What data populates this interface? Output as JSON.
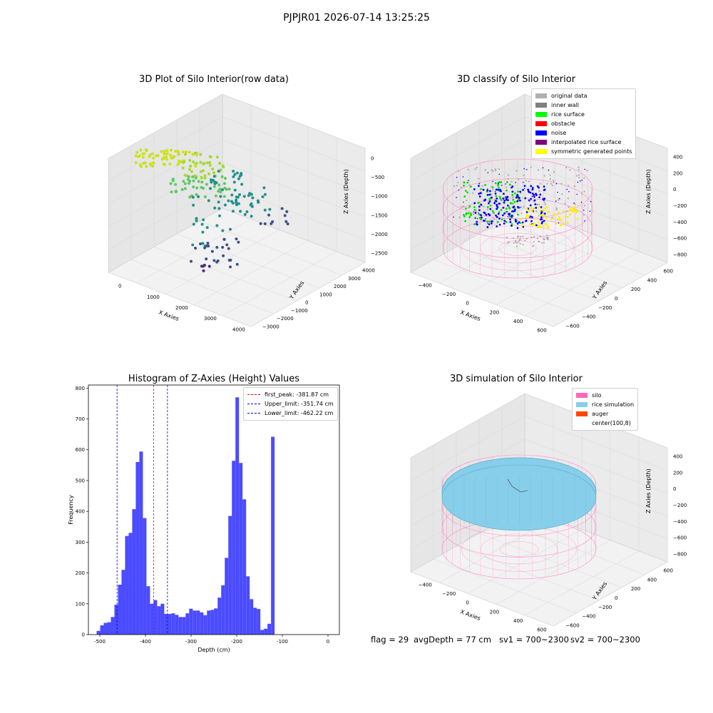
{
  "suptitle": "PJPJR01 2026-07-14 13:25:25",
  "panels": {
    "p1": {
      "title": "3D Plot of Silo Interior(row data)",
      "xlabel": "X Axies",
      "ylabel": "Y Axies",
      "zlabel": "Z Axies (Depth)",
      "xticks": [
        "0",
        "1000",
        "2000",
        "3000",
        "4000"
      ],
      "yticks": [
        "−3000",
        "−2000",
        "−1000",
        "0",
        "1000",
        "2000",
        "3000",
        "4000"
      ],
      "zticks": [
        "0",
        "−500",
        "−1000",
        "−1500",
        "−2000",
        "−2500"
      ]
    },
    "p2": {
      "title": "3D classify of Silo Interior",
      "xlabel": "X Axies",
      "ylabel": "Y Axies",
      "zlabel": "Z Axies (Depth)",
      "xticks": [
        "−400",
        "−200",
        "0",
        "200",
        "400",
        "600"
      ],
      "yticks": [
        "−600",
        "−400",
        "−200",
        "0",
        "200",
        "400",
        "600"
      ],
      "zticks": [
        "400",
        "200",
        "0",
        "−200",
        "−400",
        "−600",
        "−800"
      ],
      "legend": [
        {
          "label": "original data",
          "color": "#b0b0b0"
        },
        {
          "label": "inner wall",
          "color": "#808080"
        },
        {
          "label": "rice surface",
          "color": "#00ff00"
        },
        {
          "label": "obstacle",
          "color": "#ff0000"
        },
        {
          "label": "noise",
          "color": "#0000ff"
        },
        {
          "label": "interpolated rice surface",
          "color": "#800080"
        },
        {
          "label": "symmetric generated points",
          "color": "#ffff00"
        }
      ]
    },
    "p4": {
      "title": "3D simulation of Silo Interior",
      "xlabel": "X Axies",
      "ylabel": "Y Axies",
      "zlabel": "Z Axies (Depth)",
      "xticks": [
        "−400",
        "−200",
        "0",
        "200",
        "400",
        "600"
      ],
      "yticks": [
        "−600",
        "−400",
        "−200",
        "0",
        "200",
        "400",
        "600"
      ],
      "zticks": [
        "400",
        "200",
        "0",
        "−200",
        "−400",
        "−600",
        "−800"
      ],
      "legend": [
        {
          "label": "silo",
          "color": "#ff69b4"
        },
        {
          "label": "rice simulation",
          "color": "#87ceeb"
        },
        {
          "label": "auger",
          "color": "#ff4500"
        },
        {
          "label": "center(100,8)",
          "color": "#ffffff"
        }
      ]
    }
  },
  "chart_data": {
    "type": "bar",
    "title": "Histogram of Z-Axies (Height) Values",
    "xlabel": "Depth (cm)",
    "ylabel": "Frequency",
    "xlim": [
      -525,
      25
    ],
    "ylim": [
      0,
      810
    ],
    "xticks": [
      -500,
      -400,
      -300,
      -200,
      -100,
      0
    ],
    "yticks": [
      0,
      100,
      200,
      300,
      400,
      500,
      600,
      700,
      800
    ],
    "bin_start": -507,
    "bin_width": 7.8,
    "values": [
      12,
      30,
      38,
      40,
      57,
      97,
      162,
      210,
      320,
      330,
      407,
      560,
      594,
      378,
      157,
      100,
      112,
      92,
      100,
      67,
      67,
      69,
      64,
      57,
      57,
      69,
      84,
      78,
      78,
      72,
      63,
      78,
      80,
      85,
      120,
      160,
      249,
      385,
      564,
      770,
      557,
      439,
      189,
      115,
      87,
      83,
      15,
      19,
      35,
      642
    ],
    "lines": [
      {
        "label": "first_peak: -381.87 cm",
        "x": -381.87,
        "color": "#ff0000"
      },
      {
        "label": "Upper_limit: -351.74 cm",
        "x": -351.74,
        "color": "#0000cc"
      },
      {
        "label": "Lower_limit: -462.22 cm",
        "x": -462.22,
        "color": "#0000cc"
      }
    ],
    "bar_color": "#4b4bff"
  },
  "footer": {
    "flag": "flag = 29",
    "avg": "avgDepth = 77 cm",
    "sv1": "sv1 = 700~2300",
    "sv2": "sv2 = 700~2300"
  }
}
